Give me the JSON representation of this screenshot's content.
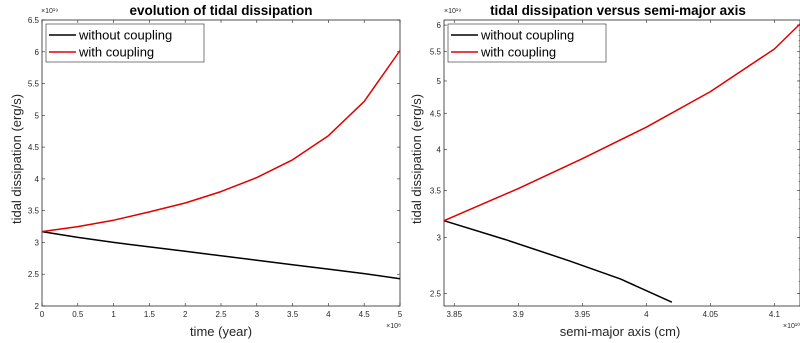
{
  "chart_data": [
    {
      "type": "line",
      "title": "evolution of tidal dissipation",
      "xlabel": "time (year)",
      "ylabel": "tidal dissipation (erg/s)",
      "x_exponent": "×10⁸",
      "y_exponent": "×10¹⁹",
      "xlim": [
        0,
        5
      ],
      "ylim": [
        2,
        6.5
      ],
      "xticks": [
        0,
        0.5,
        1,
        1.5,
        2,
        2.5,
        3,
        3.5,
        4,
        4.5,
        5
      ],
      "xtick_labels": [
        "0",
        "0.5",
        "1",
        "1.5",
        "2",
        "2.5",
        "3",
        "3.5",
        "4",
        "4.5",
        "5"
      ],
      "yticks": [
        2,
        2.5,
        3,
        3.5,
        4,
        4.5,
        5,
        5.5,
        6,
        6.5
      ],
      "ytick_labels": [
        "2",
        "2.5",
        "3",
        "3.5",
        "4",
        "4.5",
        "5",
        "5.5",
        "6",
        "6.5"
      ],
      "legend_placement": "top-left",
      "grid": false,
      "series": [
        {
          "name": "without coupling",
          "color": "#000000",
          "x": [
            0,
            0.5,
            1,
            1.5,
            2,
            2.5,
            3,
            3.5,
            4,
            4.5,
            5
          ],
          "y": [
            3.17,
            3.08,
            3.0,
            2.93,
            2.86,
            2.79,
            2.72,
            2.65,
            2.58,
            2.51,
            2.43
          ]
        },
        {
          "name": "with coupling",
          "color": "#e00000",
          "x": [
            0,
            0.5,
            1,
            1.5,
            2,
            2.5,
            3,
            3.5,
            4,
            4.5,
            5
          ],
          "y": [
            3.17,
            3.25,
            3.35,
            3.48,
            3.62,
            3.8,
            4.02,
            4.3,
            4.68,
            5.22,
            6.02
          ]
        }
      ]
    },
    {
      "type": "line",
      "title": "tidal dissipation versus semi-major axis",
      "xlabel": "semi-major axis (cm)",
      "ylabel": "tidal dissipation (erg/s)",
      "x_exponent": "×10¹⁰",
      "y_exponent": "×10¹⁹",
      "xlim": [
        3.842,
        4.12
      ],
      "ylim": [
        2.4,
        6.1
      ],
      "yscale": "log",
      "xticks": [
        3.85,
        3.9,
        3.95,
        4,
        4.05,
        4.1
      ],
      "xtick_labels": [
        "3.85",
        "3.9",
        "3.95",
        "4",
        "4.05",
        "4.1"
      ],
      "yticks": [
        2.5,
        3,
        3.5,
        4,
        4.5,
        5,
        5.5,
        6
      ],
      "ytick_labels": [
        "2.5",
        "3",
        "3.5",
        "4",
        "4.5",
        "5",
        "5.5",
        "6"
      ],
      "legend_placement": "top-left",
      "grid": false,
      "series": [
        {
          "name": "without coupling",
          "color": "#000000",
          "x": [
            3.842,
            3.89,
            3.94,
            3.98,
            4.02
          ],
          "y": [
            3.17,
            2.98,
            2.78,
            2.62,
            2.43
          ]
        },
        {
          "name": "with coupling",
          "color": "#e00000",
          "x": [
            3.842,
            3.9,
            3.95,
            4.0,
            4.05,
            4.1,
            4.12
          ],
          "y": [
            3.17,
            3.52,
            3.88,
            4.3,
            4.83,
            5.55,
            6.02
          ]
        }
      ]
    }
  ]
}
